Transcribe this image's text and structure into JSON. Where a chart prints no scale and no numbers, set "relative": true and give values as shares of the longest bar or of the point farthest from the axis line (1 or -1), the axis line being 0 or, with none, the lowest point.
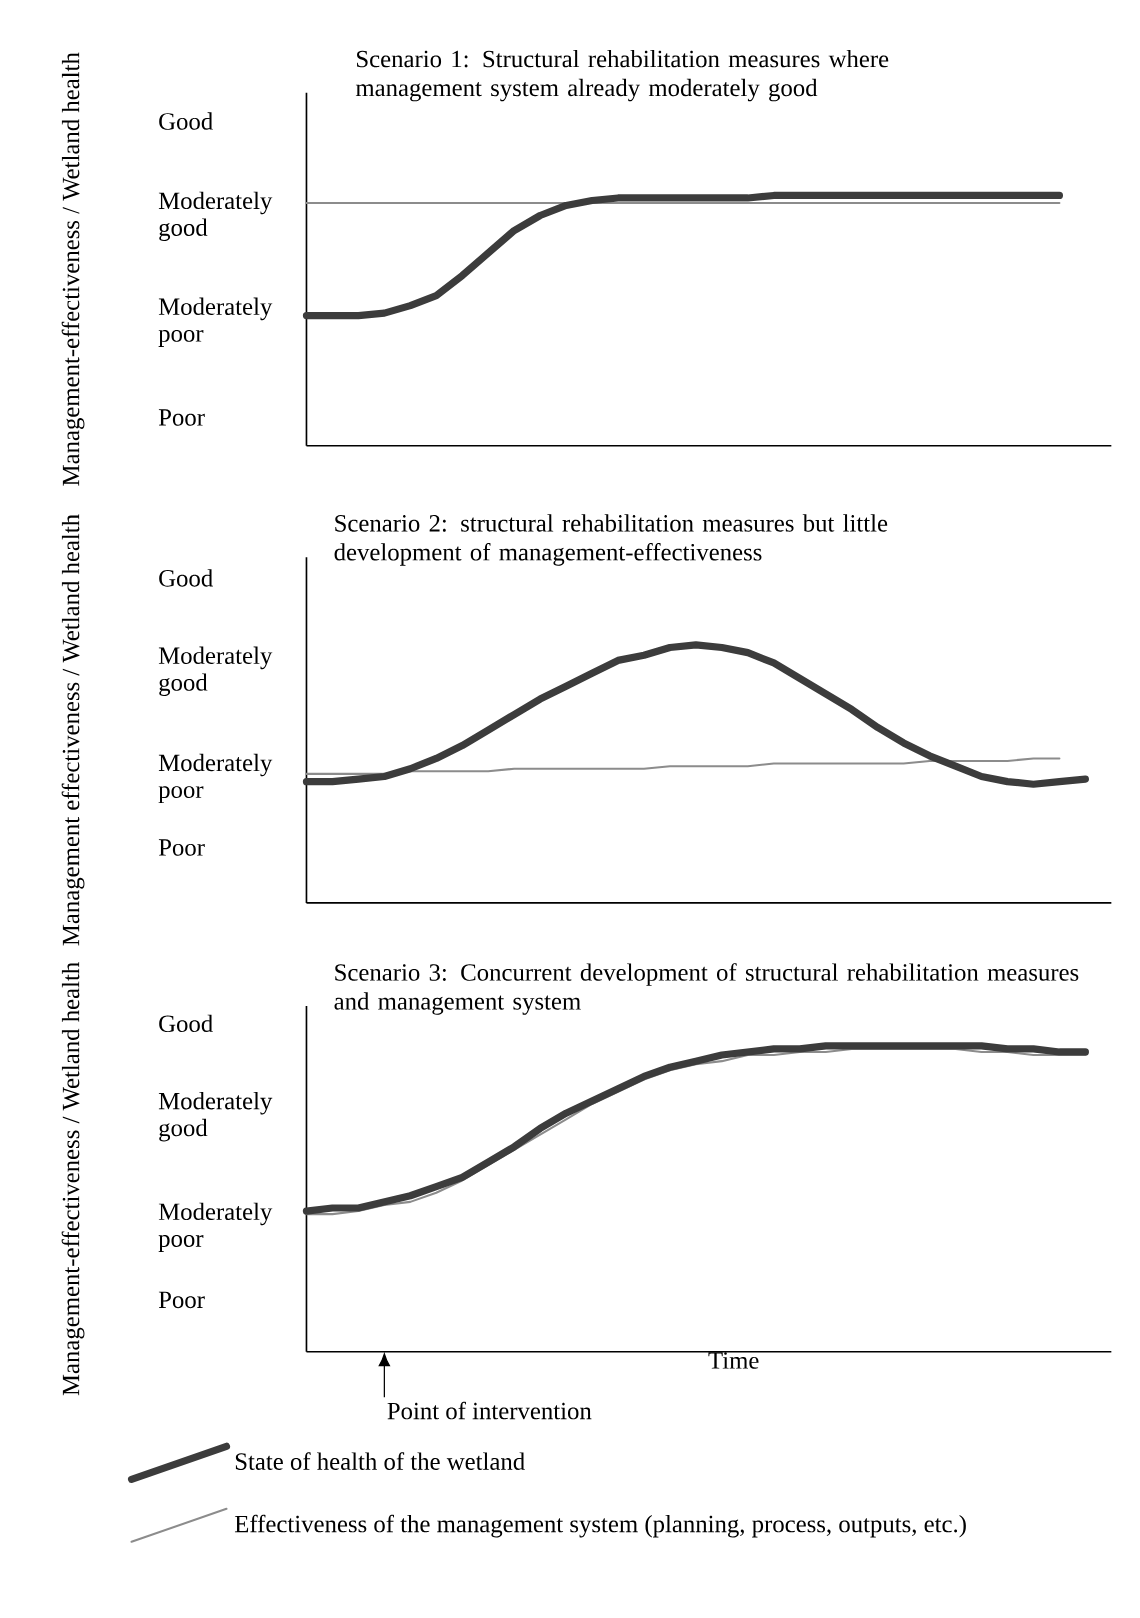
{
  "chart_data": [
    {
      "type": "line",
      "relative": true,
      "title": "Scenario 1: Structural rehabilitation measures where management system already moderately good",
      "ylabel": "Management-effectiveness / Wetland health",
      "categories": [
        null,
        null,
        null,
        null,
        null,
        null,
        null,
        null,
        null,
        null,
        null,
        null,
        null,
        null,
        null,
        null,
        null,
        null,
        null,
        null,
        null,
        null,
        null,
        null,
        null,
        null,
        null,
        null,
        null,
        null,
        null,
        null
      ],
      "annotations": [
        "Poor",
        "Moderately poor",
        "Moderately good",
        "Good"
      ],
      "series": [
        {
          "color": "#8c8c8c",
          "values": [
            0.97,
            0.97,
            0.97,
            0.97,
            0.97,
            0.97,
            0.97,
            0.97,
            0.97,
            0.97,
            0.97,
            0.97,
            0.97,
            0.97,
            0.97,
            0.97,
            0.97,
            0.97,
            0.97,
            0.97,
            0.97,
            0.97,
            0.97,
            0.97,
            0.97,
            0.97,
            0.97,
            0.97,
            0.97,
            0.97,
            null,
            null
          ]
        },
        {
          "color": "#3c3c3c",
          "values": [
            0.52,
            0.52,
            0.52,
            0.53,
            0.56,
            0.6,
            0.68,
            0.77,
            0.86,
            0.92,
            0.96,
            0.98,
            0.99,
            0.99,
            0.99,
            0.99,
            0.99,
            0.99,
            1.0,
            1.0,
            1.0,
            1.0,
            1.0,
            1.0,
            1.0,
            1.0,
            1.0,
            1.0,
            1.0,
            1.0,
            null,
            null
          ]
        }
      ]
    },
    {
      "type": "line",
      "relative": true,
      "title": "Scenario 2: structural rehabilitation measures but little development of management-effectiveness",
      "ylabel": "Management effectiveness / Wetland health",
      "categories": [
        null,
        null,
        null,
        null,
        null,
        null,
        null,
        null,
        null,
        null,
        null,
        null,
        null,
        null,
        null,
        null,
        null,
        null,
        null,
        null,
        null,
        null,
        null,
        null,
        null,
        null,
        null,
        null,
        null,
        null,
        null,
        null
      ],
      "annotations": [
        "Poor",
        "Moderately poor",
        "Moderately good",
        "Good"
      ],
      "series": [
        {
          "color": "#8c8c8c",
          "values": [
            0.5,
            0.5,
            0.5,
            0.5,
            0.51,
            0.51,
            0.51,
            0.51,
            0.52,
            0.52,
            0.52,
            0.52,
            0.52,
            0.52,
            0.53,
            0.53,
            0.53,
            0.53,
            0.54,
            0.54,
            0.54,
            0.54,
            0.54,
            0.54,
            0.55,
            0.55,
            0.55,
            0.55,
            0.56,
            0.56,
            null,
            null
          ]
        },
        {
          "color": "#3c3c3c",
          "values": [
            0.47,
            0.47,
            0.48,
            0.49,
            0.52,
            0.56,
            0.61,
            0.67,
            0.73,
            0.79,
            0.84,
            0.89,
            0.94,
            0.96,
            0.99,
            1.0,
            0.99,
            0.97,
            0.93,
            0.87,
            0.81,
            0.75,
            0.68,
            0.62,
            0.57,
            0.53,
            0.49,
            0.47,
            0.46,
            0.47,
            0.48,
            null
          ]
        }
      ]
    },
    {
      "type": "line",
      "relative": true,
      "title": "Scenario 3: Concurrent development of structural rehabilitation measures and management system",
      "ylabel": "Management-effectiveness / Wetland health",
      "xlabel": "Time",
      "categories": [
        null,
        null,
        null,
        null,
        null,
        null,
        null,
        null,
        null,
        null,
        null,
        null,
        null,
        null,
        null,
        null,
        null,
        null,
        null,
        null,
        null,
        null,
        null,
        null,
        null,
        null,
        null,
        null,
        null,
        null,
        null,
        null
      ],
      "legend": "bottom",
      "annotations": [
        "Poor",
        "Moderately poor",
        "Moderately good",
        "Good",
        "Point of intervention"
      ],
      "series": [
        {
          "name": "Effectiveness of the management system (planning, process, outputs, etc.)",
          "color": "#8c8c8c",
          "values": [
            0.45,
            0.45,
            0.46,
            0.48,
            0.49,
            0.52,
            0.56,
            0.61,
            0.66,
            0.71,
            0.76,
            0.81,
            0.85,
            0.89,
            0.92,
            0.94,
            0.95,
            0.97,
            0.97,
            0.98,
            0.98,
            0.99,
            0.99,
            0.99,
            0.99,
            0.99,
            0.98,
            0.98,
            0.97,
            0.97,
            0.97,
            null
          ]
        },
        {
          "name": "State of health of the wetland",
          "color": "#3c3c3c",
          "values": [
            0.46,
            0.47,
            0.47,
            0.49,
            0.51,
            0.54,
            0.57,
            0.62,
            0.67,
            0.73,
            0.78,
            0.82,
            0.86,
            0.9,
            0.93,
            0.95,
            0.97,
            0.98,
            0.99,
            0.99,
            1.0,
            1.0,
            1.0,
            1.0,
            1.0,
            1.0,
            1.0,
            0.99,
            0.99,
            0.98,
            0.98,
            null
          ]
        }
      ]
    }
  ]
}
